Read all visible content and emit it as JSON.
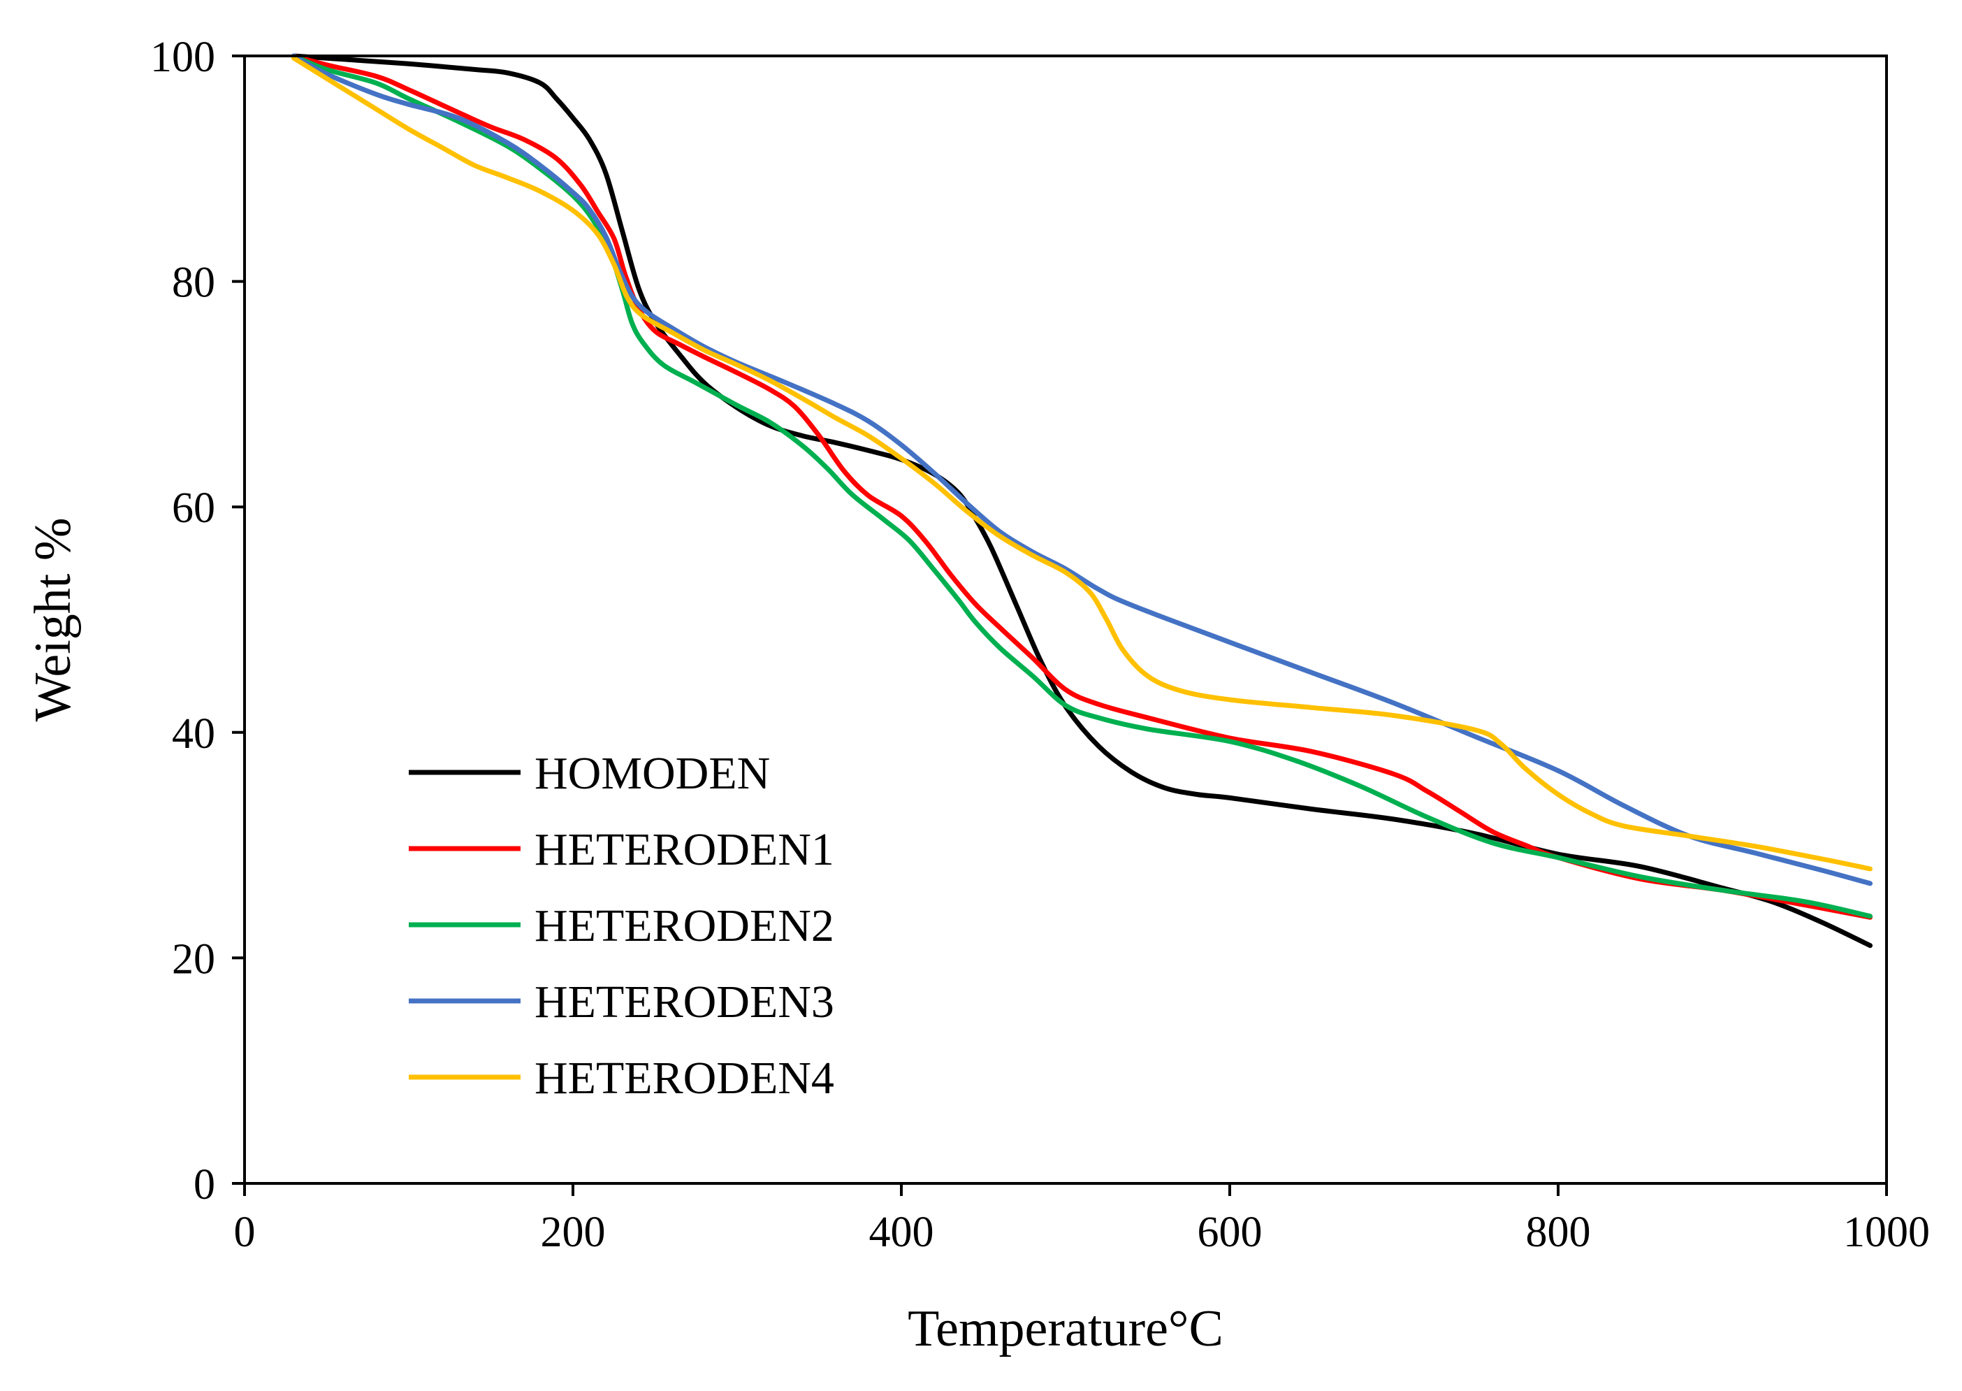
{
  "chart_data": {
    "type": "line",
    "title": "",
    "xlabel": "Temperature°C",
    "ylabel": "Weight %",
    "xlim": [
      0,
      1000
    ],
    "ylim": [
      0,
      100
    ],
    "xticks": [
      0,
      200,
      400,
      600,
      800,
      1000
    ],
    "yticks": [
      0,
      20,
      40,
      60,
      80,
      100
    ],
    "grid": false,
    "legend_position": "bottom-left",
    "series": [
      {
        "name": "HOMODEN",
        "color": "#000000",
        "points": [
          [
            30,
            100
          ],
          [
            60,
            99.7
          ],
          [
            100,
            99.3
          ],
          [
            140,
            98.8
          ],
          [
            160,
            98.5
          ],
          [
            180,
            97.6
          ],
          [
            190,
            96.2
          ],
          [
            200,
            94.5
          ],
          [
            210,
            92.6
          ],
          [
            220,
            89.6
          ],
          [
            230,
            84.5
          ],
          [
            240,
            79.4
          ],
          [
            250,
            76.4
          ],
          [
            265,
            73.5
          ],
          [
            280,
            71
          ],
          [
            300,
            68.8
          ],
          [
            320,
            67.2
          ],
          [
            340,
            66.3
          ],
          [
            360,
            65.7
          ],
          [
            380,
            65
          ],
          [
            400,
            64.2
          ],
          [
            420,
            62.9
          ],
          [
            435,
            61.2
          ],
          [
            445,
            59
          ],
          [
            455,
            56.3
          ],
          [
            470,
            51.3
          ],
          [
            485,
            46.3
          ],
          [
            500,
            42.3
          ],
          [
            520,
            38.8
          ],
          [
            540,
            36.5
          ],
          [
            560,
            35.1
          ],
          [
            580,
            34.5
          ],
          [
            600,
            34.2
          ],
          [
            650,
            33.2
          ],
          [
            700,
            32.3
          ],
          [
            750,
            31
          ],
          [
            800,
            29.2
          ],
          [
            850,
            28.1
          ],
          [
            900,
            26.2
          ],
          [
            930,
            25
          ],
          [
            960,
            23.2
          ],
          [
            990,
            21.1
          ]
        ]
      },
      {
        "name": "HETERODEN1",
        "color": "#ff0000",
        "points": [
          [
            30,
            100
          ],
          [
            50,
            99.2
          ],
          [
            80,
            98.2
          ],
          [
            100,
            97
          ],
          [
            130,
            95
          ],
          [
            150,
            93.7
          ],
          [
            170,
            92.6
          ],
          [
            190,
            90.9
          ],
          [
            205,
            88.5
          ],
          [
            215,
            86.2
          ],
          [
            225,
            83.8
          ],
          [
            232,
            80.5
          ],
          [
            240,
            77.6
          ],
          [
            250,
            75.6
          ],
          [
            265,
            74.4
          ],
          [
            280,
            73.3
          ],
          [
            300,
            71.9
          ],
          [
            320,
            70.4
          ],
          [
            335,
            68.9
          ],
          [
            350,
            66.3
          ],
          [
            365,
            63.2
          ],
          [
            380,
            61
          ],
          [
            400,
            59.2
          ],
          [
            415,
            56.9
          ],
          [
            430,
            54
          ],
          [
            445,
            51.4
          ],
          [
            460,
            49.3
          ],
          [
            480,
            46.6
          ],
          [
            500,
            43.8
          ],
          [
            520,
            42.5
          ],
          [
            550,
            41.3
          ],
          [
            600,
            39.5
          ],
          [
            650,
            38.3
          ],
          [
            700,
            36.3
          ],
          [
            720,
            34.8
          ],
          [
            740,
            33
          ],
          [
            760,
            31.2
          ],
          [
            780,
            30
          ],
          [
            800,
            28.9
          ],
          [
            850,
            27
          ],
          [
            900,
            26
          ],
          [
            950,
            24.7
          ],
          [
            990,
            23.6
          ]
        ]
      },
      {
        "name": "HETERODEN2",
        "color": "#00b050",
        "points": [
          [
            30,
            100
          ],
          [
            50,
            98.8
          ],
          [
            80,
            97.6
          ],
          [
            100,
            96.2
          ],
          [
            130,
            94.2
          ],
          [
            160,
            92
          ],
          [
            180,
            90
          ],
          [
            200,
            87.6
          ],
          [
            212,
            85.5
          ],
          [
            222,
            82.8
          ],
          [
            230,
            79.3
          ],
          [
            236,
            76.3
          ],
          [
            243,
            74.5
          ],
          [
            255,
            72.6
          ],
          [
            275,
            71
          ],
          [
            300,
            69
          ],
          [
            320,
            67.5
          ],
          [
            340,
            65.4
          ],
          [
            355,
            63.4
          ],
          [
            370,
            61.1
          ],
          [
            390,
            58.8
          ],
          [
            405,
            57
          ],
          [
            420,
            54.4
          ],
          [
            435,
            51.7
          ],
          [
            445,
            49.8
          ],
          [
            460,
            47.5
          ],
          [
            480,
            45
          ],
          [
            500,
            42.4
          ],
          [
            520,
            41.3
          ],
          [
            550,
            40.3
          ],
          [
            600,
            39.2
          ],
          [
            640,
            37.5
          ],
          [
            680,
            35.2
          ],
          [
            720,
            32.5
          ],
          [
            760,
            30.2
          ],
          [
            800,
            28.9
          ],
          [
            850,
            27.2
          ],
          [
            900,
            26
          ],
          [
            950,
            25
          ],
          [
            990,
            23.7
          ]
        ]
      },
      {
        "name": "HETERODEN3",
        "color": "#4472c4",
        "points": [
          [
            30,
            100
          ],
          [
            50,
            98.4
          ],
          [
            80,
            96.6
          ],
          [
            100,
            95.7
          ],
          [
            130,
            94.5
          ],
          [
            160,
            92.3
          ],
          [
            180,
            90.3
          ],
          [
            200,
            87.9
          ],
          [
            210,
            86.4
          ],
          [
            220,
            84
          ],
          [
            228,
            81.1
          ],
          [
            236,
            78.7
          ],
          [
            245,
            77.3
          ],
          [
            260,
            75.9
          ],
          [
            280,
            74.2
          ],
          [
            300,
            72.8
          ],
          [
            330,
            71
          ],
          [
            360,
            69.1
          ],
          [
            380,
            67.6
          ],
          [
            400,
            65.5
          ],
          [
            420,
            63
          ],
          [
            440,
            60.3
          ],
          [
            460,
            57.8
          ],
          [
            480,
            56
          ],
          [
            500,
            54.5
          ],
          [
            520,
            52.7
          ],
          [
            540,
            51.3
          ],
          [
            600,
            48
          ],
          [
            650,
            45.3
          ],
          [
            700,
            42.6
          ],
          [
            750,
            39.6
          ],
          [
            800,
            36.6
          ],
          [
            840,
            33.5
          ],
          [
            880,
            30.8
          ],
          [
            920,
            29.3
          ],
          [
            960,
            27.8
          ],
          [
            990,
            26.6
          ]
        ]
      },
      {
        "name": "HETERODEN4",
        "color": "#ffc000",
        "points": [
          [
            30,
            99.8
          ],
          [
            50,
            98
          ],
          [
            80,
            95.3
          ],
          [
            100,
            93.5
          ],
          [
            120,
            91.9
          ],
          [
            140,
            90.3
          ],
          [
            160,
            89.2
          ],
          [
            180,
            88
          ],
          [
            200,
            86.3
          ],
          [
            215,
            84.2
          ],
          [
            225,
            81.5
          ],
          [
            233,
            78.6
          ],
          [
            242,
            77
          ],
          [
            260,
            75.5
          ],
          [
            280,
            73.9
          ],
          [
            300,
            72.6
          ],
          [
            320,
            71.2
          ],
          [
            340,
            69.6
          ],
          [
            360,
            67.9
          ],
          [
            380,
            66.3
          ],
          [
            400,
            64.3
          ],
          [
            420,
            62.1
          ],
          [
            440,
            59.6
          ],
          [
            460,
            57.4
          ],
          [
            480,
            55.7
          ],
          [
            500,
            54.2
          ],
          [
            515,
            52.4
          ],
          [
            525,
            50
          ],
          [
            535,
            47.3
          ],
          [
            550,
            45
          ],
          [
            570,
            43.7
          ],
          [
            600,
            42.9
          ],
          [
            650,
            42.2
          ],
          [
            700,
            41.5
          ],
          [
            750,
            40.2
          ],
          [
            765,
            39
          ],
          [
            780,
            36.8
          ],
          [
            800,
            34.5
          ],
          [
            820,
            32.8
          ],
          [
            840,
            31.7
          ],
          [
            880,
            30.8
          ],
          [
            920,
            29.9
          ],
          [
            960,
            28.8
          ],
          [
            990,
            27.9
          ]
        ]
      }
    ]
  }
}
